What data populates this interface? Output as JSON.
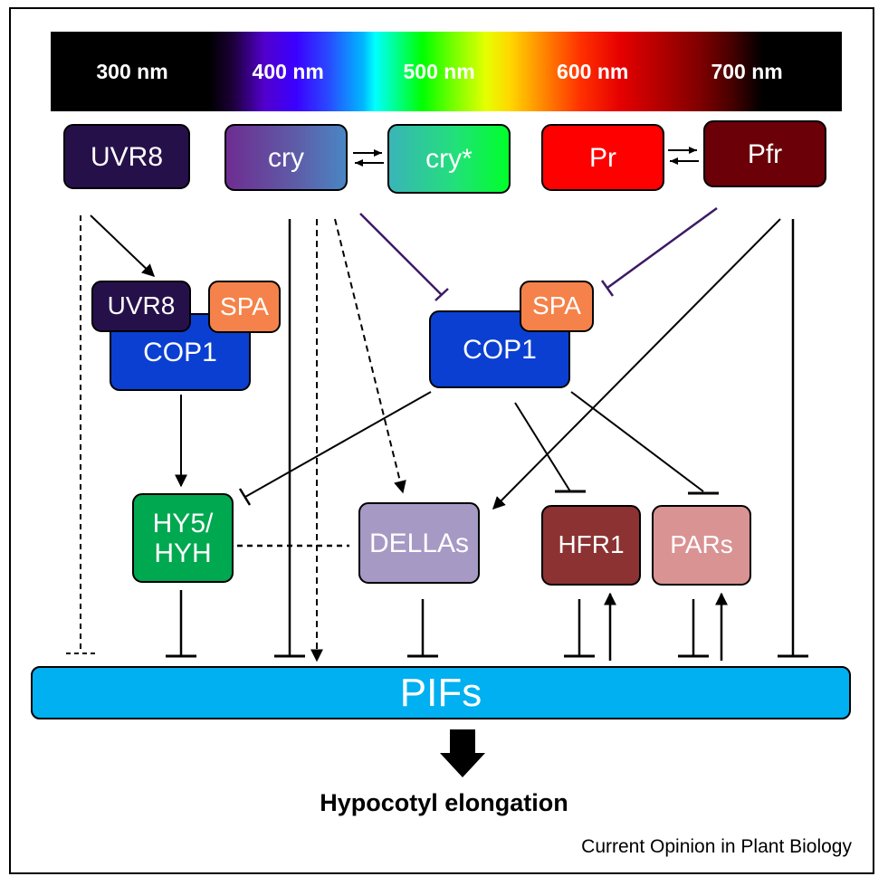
{
  "spectrum": {
    "wavelengths": [
      "300 nm",
      "400 nm",
      "500 nm",
      "600 nm",
      "700 nm"
    ]
  },
  "photoreceptors": {
    "uvr8": "UVR8",
    "cry": "cry",
    "cry_active": "cry*",
    "pr": "Pr",
    "pfr": "Pfr"
  },
  "complexes": {
    "left": {
      "uvr8": "UVR8",
      "spa": "SPA",
      "cop1": "COP1"
    },
    "right": {
      "spa": "SPA",
      "cop1": "COP1"
    }
  },
  "regulators": {
    "hy5": "HY5/\nHYH",
    "dellas": "DELLAs",
    "hfr1": "HFR1",
    "pars": "PARs"
  },
  "pifs": "PIFs",
  "outcome": "Hypocotyl elongation",
  "credit": "Current Opinion in Plant Biology",
  "colors": {
    "uvr8": "#26104a",
    "cop1": "#0a3fd1",
    "spa": "#f5824a",
    "pr": "#ff0000",
    "pfr": "#6b0008",
    "hy5": "#00a850",
    "dellas": "#a699c4",
    "hfr1": "#8c3232",
    "pars": "#d99393",
    "pifs": "#00b0f0",
    "cop1_inhibitor_lines": "#3d1a66"
  }
}
